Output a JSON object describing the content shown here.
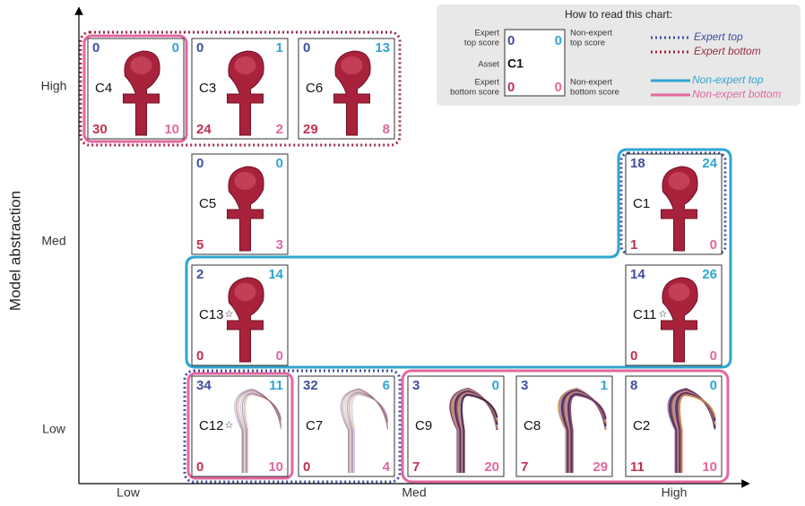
{
  "y_axis": {
    "title": "Model abstraction",
    "labels": [
      "High",
      "Med",
      "Low"
    ]
  },
  "x_axis": {
    "labels": [
      "Low",
      "Med",
      "High"
    ]
  },
  "legend": {
    "title": "How to read this chart:",
    "expert_top_score": [
      "Expert",
      "top score"
    ],
    "non_expert_top_score": [
      "Non-expert",
      "top score"
    ],
    "asset": "Asset",
    "expert_bottom_score": [
      "Expert",
      "bottom score"
    ],
    "non_expert_bottom_score": [
      "Non-expert",
      "bottom score"
    ],
    "sample": {
      "label": "C1",
      "expert_top": 0,
      "non_expert_top": 0,
      "expert_bottom": 0,
      "non_expert_bottom": 0
    },
    "groups": [
      "Expert top",
      "Expert bottom",
      "Non-expert top",
      "Non-expert bottom"
    ]
  },
  "assets": [
    {
      "label": "C4",
      "expert_top": 0,
      "non_expert_top": 0,
      "expert_bottom": 30,
      "non_expert_bottom": 10
    },
    {
      "label": "C3",
      "expert_top": 0,
      "non_expert_top": 1,
      "expert_bottom": 24,
      "non_expert_bottom": 2
    },
    {
      "label": "C6",
      "expert_top": 0,
      "non_expert_top": 13,
      "expert_bottom": 29,
      "non_expert_bottom": 8
    },
    {
      "label": "C5",
      "expert_top": 0,
      "non_expert_top": 0,
      "expert_bottom": 5,
      "non_expert_bottom": 3
    },
    {
      "label": "C1",
      "expert_top": 18,
      "non_expert_top": 24,
      "expert_bottom": 1,
      "non_expert_bottom": 0
    },
    {
      "label": "C13",
      "expert_top": 2,
      "non_expert_top": 14,
      "expert_bottom": 0,
      "non_expert_bottom": 0,
      "starred": true
    },
    {
      "label": "C11",
      "expert_top": 14,
      "non_expert_top": 26,
      "expert_bottom": 0,
      "non_expert_bottom": 0,
      "starred": true
    },
    {
      "label": "C12",
      "expert_top": 34,
      "non_expert_top": 11,
      "expert_bottom": 0,
      "non_expert_bottom": 10,
      "starred": true
    },
    {
      "label": "C7",
      "expert_top": 32,
      "non_expert_top": 6,
      "expert_bottom": 0,
      "non_expert_bottom": 4
    },
    {
      "label": "C9",
      "expert_top": 3,
      "non_expert_top": 0,
      "expert_bottom": 7,
      "non_expert_bottom": 20
    },
    {
      "label": "C8",
      "expert_top": 3,
      "non_expert_top": 1,
      "expert_bottom": 7,
      "non_expert_bottom": 29
    },
    {
      "label": "C2",
      "expert_top": 8,
      "non_expert_top": 0,
      "expert_bottom": 11,
      "non_expert_bottom": 10
    }
  ]
}
